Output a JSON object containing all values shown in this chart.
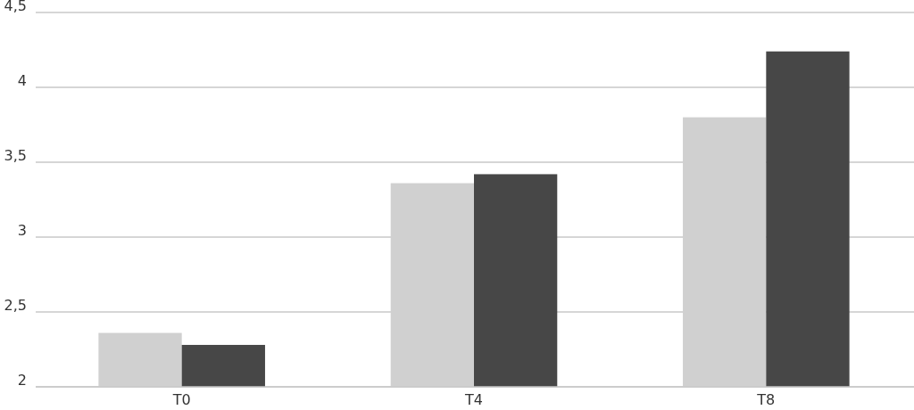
{
  "chart_data": {
    "type": "bar",
    "categories": [
      "T0",
      "T4",
      "T8"
    ],
    "series": [
      {
        "color": "#d0d0d0",
        "values": [
          2.36,
          3.36,
          3.8
        ]
      },
      {
        "color": "#474747",
        "values": [
          2.28,
          3.42,
          4.24
        ]
      }
    ],
    "ylim": [
      2,
      4.5
    ],
    "yticks": [
      2,
      {
        "value": 2.5,
        "label": "2,5"
      },
      3,
      {
        "value": 3.5,
        "label": "3,5"
      },
      4,
      {
        "value": 4.5,
        "label": "4,5"
      }
    ],
    "grid": "y"
  }
}
